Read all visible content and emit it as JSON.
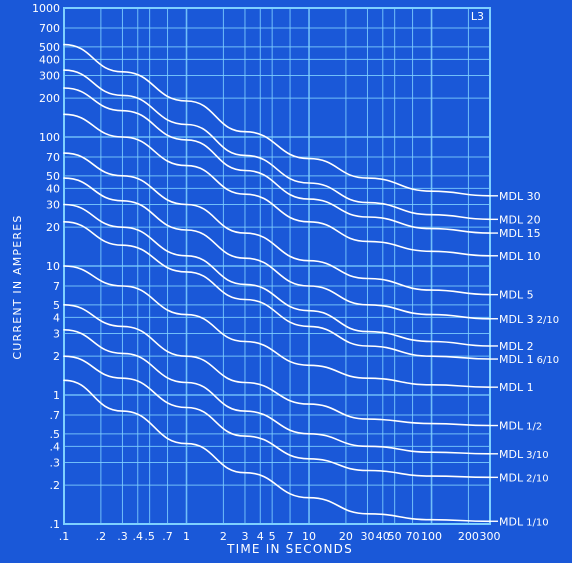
{
  "chart_data": {
    "type": "line",
    "title": "",
    "corner_tag": "L3",
    "xlabel": "TIME IN SECONDS",
    "ylabel": "CURRENT IN AMPERES",
    "x_scale": "log",
    "y_scale": "log",
    "xlim": [
      0.1,
      300
    ],
    "ylim": [
      0.1,
      1000
    ],
    "grid": true,
    "x_ticks": [
      {
        "v": 0.1,
        "label": ".1"
      },
      {
        "v": 0.2,
        "label": ".2"
      },
      {
        "v": 0.3,
        "label": ".3"
      },
      {
        "v": 0.4,
        "label": ".4"
      },
      {
        "v": 0.5,
        "label": ".5"
      },
      {
        "v": 0.7,
        "label": ".7"
      },
      {
        "v": 1,
        "label": "1"
      },
      {
        "v": 2,
        "label": "2"
      },
      {
        "v": 3,
        "label": "3"
      },
      {
        "v": 4,
        "label": "4"
      },
      {
        "v": 5,
        "label": "5"
      },
      {
        "v": 7,
        "label": "7"
      },
      {
        "v": 10,
        "label": "10"
      },
      {
        "v": 20,
        "label": "20"
      },
      {
        "v": 30,
        "label": "30"
      },
      {
        "v": 40,
        "label": "40"
      },
      {
        "v": 50,
        "label": "50"
      },
      {
        "v": 70,
        "label": "70"
      },
      {
        "v": 100,
        "label": "100"
      },
      {
        "v": 200,
        "label": "200"
      },
      {
        "v": 300,
        "label": "300"
      }
    ],
    "y_ticks": [
      {
        "v": 0.1,
        "label": ".1"
      },
      {
        "v": 0.2,
        "label": ".2"
      },
      {
        "v": 0.3,
        "label": ".3"
      },
      {
        "v": 0.4,
        "label": ".4"
      },
      {
        "v": 0.5,
        "label": ".5"
      },
      {
        "v": 0.7,
        "label": ".7"
      },
      {
        "v": 1,
        "label": "1"
      },
      {
        "v": 2,
        "label": "2"
      },
      {
        "v": 3,
        "label": "3"
      },
      {
        "v": 4,
        "label": "4"
      },
      {
        "v": 5,
        "label": "5"
      },
      {
        "v": 7,
        "label": "7"
      },
      {
        "v": 10,
        "label": "10"
      },
      {
        "v": 20,
        "label": "20"
      },
      {
        "v": 30,
        "label": "30"
      },
      {
        "v": 40,
        "label": "40"
      },
      {
        "v": 50,
        "label": "50"
      },
      {
        "v": 70,
        "label": "70"
      },
      {
        "v": 100,
        "label": "100"
      },
      {
        "v": 200,
        "label": "200"
      },
      {
        "v": 300,
        "label": "300"
      },
      {
        "v": 400,
        "label": "400"
      },
      {
        "v": 500,
        "label": "500"
      },
      {
        "v": 700,
        "label": "700"
      },
      {
        "v": 1000,
        "label": "1000"
      }
    ],
    "series": [
      {
        "name": "MDL 30",
        "label_main": "MDL 30",
        "label_frac": "",
        "points": [
          [
            0.1,
            520
          ],
          [
            0.3,
            320
          ],
          [
            1,
            190
          ],
          [
            3,
            110
          ],
          [
            10,
            68
          ],
          [
            30,
            48
          ],
          [
            100,
            38
          ],
          [
            300,
            35
          ]
        ]
      },
      {
        "name": "MDL 20",
        "label_main": "MDL 20",
        "label_frac": "",
        "points": [
          [
            0.1,
            330
          ],
          [
            0.3,
            210
          ],
          [
            1,
            125
          ],
          [
            3,
            72
          ],
          [
            10,
            44
          ],
          [
            30,
            31
          ],
          [
            100,
            25
          ],
          [
            300,
            23
          ]
        ]
      },
      {
        "name": "MDL 15",
        "label_main": "MDL 15",
        "label_frac": "",
        "points": [
          [
            0.1,
            240
          ],
          [
            0.3,
            160
          ],
          [
            1,
            95
          ],
          [
            3,
            55
          ],
          [
            10,
            33
          ],
          [
            30,
            24
          ],
          [
            100,
            19.5
          ],
          [
            300,
            18
          ]
        ]
      },
      {
        "name": "MDL 10",
        "label_main": "MDL 10",
        "label_frac": "",
        "points": [
          [
            0.1,
            150
          ],
          [
            0.3,
            100
          ],
          [
            1,
            60
          ],
          [
            3,
            36
          ],
          [
            10,
            22
          ],
          [
            30,
            15.5
          ],
          [
            100,
            13
          ],
          [
            300,
            12
          ]
        ]
      },
      {
        "name": "MDL 5",
        "label_main": "MDL 5",
        "label_frac": "",
        "points": [
          [
            0.1,
            75
          ],
          [
            0.3,
            50
          ],
          [
            1,
            30
          ],
          [
            3,
            18
          ],
          [
            10,
            11
          ],
          [
            30,
            8
          ],
          [
            100,
            6.5
          ],
          [
            300,
            6
          ]
        ]
      },
      {
        "name": "MDL 3 2/10",
        "label_main": "MDL 3",
        "label_frac": "2/10",
        "points": [
          [
            0.1,
            48
          ],
          [
            0.3,
            32
          ],
          [
            1,
            19
          ],
          [
            3,
            11.5
          ],
          [
            10,
            7
          ],
          [
            30,
            5
          ],
          [
            100,
            4.2
          ],
          [
            300,
            3.9
          ]
        ]
      },
      {
        "name": "MDL 2",
        "label_main": "MDL 2",
        "label_frac": "",
        "points": [
          [
            0.1,
            30
          ],
          [
            0.3,
            20
          ],
          [
            1,
            12
          ],
          [
            3,
            7.2
          ],
          [
            10,
            4.5
          ],
          [
            30,
            3.1
          ],
          [
            100,
            2.6
          ],
          [
            300,
            2.4
          ]
        ]
      },
      {
        "name": "MDL 1 6/10",
        "label_main": "MDL 1",
        "label_frac": "6/10",
        "points": [
          [
            0.1,
            22
          ],
          [
            0.3,
            14.5
          ],
          [
            1,
            9
          ],
          [
            3,
            5.5
          ],
          [
            10,
            3.4
          ],
          [
            30,
            2.4
          ],
          [
            100,
            2.0
          ],
          [
            300,
            1.9
          ]
        ]
      },
      {
        "name": "MDL 1",
        "label_main": "MDL 1",
        "label_frac": "",
        "points": [
          [
            0.1,
            10
          ],
          [
            0.3,
            7
          ],
          [
            1,
            4.2
          ],
          [
            3,
            2.6
          ],
          [
            10,
            1.7
          ],
          [
            30,
            1.35
          ],
          [
            100,
            1.2
          ],
          [
            300,
            1.15
          ]
        ]
      },
      {
        "name": "MDL 1/2",
        "label_main": "MDL",
        "label_frac": "1/2",
        "points": [
          [
            0.1,
            5
          ],
          [
            0.3,
            3.4
          ],
          [
            1,
            2.0
          ],
          [
            3,
            1.25
          ],
          [
            10,
            0.85
          ],
          [
            30,
            0.65
          ],
          [
            100,
            0.6
          ],
          [
            300,
            0.58
          ]
        ]
      },
      {
        "name": "MDL 3/10",
        "label_main": "MDL",
        "label_frac": "3/10",
        "points": [
          [
            0.1,
            3.2
          ],
          [
            0.3,
            2.1
          ],
          [
            1,
            1.25
          ],
          [
            3,
            0.75
          ],
          [
            10,
            0.5
          ],
          [
            30,
            0.4
          ],
          [
            100,
            0.36
          ],
          [
            300,
            0.35
          ]
        ]
      },
      {
        "name": "MDL 2/10",
        "label_main": "MDL",
        "label_frac": "2/10",
        "points": [
          [
            0.1,
            2.0
          ],
          [
            0.3,
            1.35
          ],
          [
            1,
            0.8
          ],
          [
            3,
            0.48
          ],
          [
            10,
            0.32
          ],
          [
            30,
            0.26
          ],
          [
            100,
            0.235
          ],
          [
            300,
            0.23
          ]
        ]
      },
      {
        "name": "MDL 1/10",
        "label_main": "MDL",
        "label_frac": "1/10",
        "points": [
          [
            0.1,
            1.3
          ],
          [
            0.3,
            0.75
          ],
          [
            1,
            0.42
          ],
          [
            3,
            0.25
          ],
          [
            10,
            0.16
          ],
          [
            30,
            0.12
          ],
          [
            100,
            0.108
          ],
          [
            300,
            0.105
          ]
        ]
      }
    ]
  },
  "colors": {
    "background": "#1a58d8",
    "grid": "#7fd0ff",
    "curve": "#ffffff",
    "text": "#ffffff"
  }
}
